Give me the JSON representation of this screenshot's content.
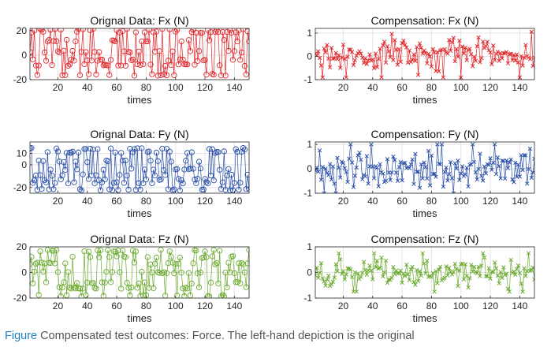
{
  "colors": {
    "red": "#e0262a",
    "blue": "#2a4fa8",
    "green": "#6aaa2e",
    "axis": "#262626",
    "grid": "#e4e4e4"
  },
  "chart_data": [
    {
      "id": "fx-orig",
      "type": "line",
      "marker": "circle",
      "color": "#e0262a",
      "title": "Orignal Data: Fx (N)",
      "xlabel": "times",
      "ylabel": "",
      "xlim": [
        1,
        150
      ],
      "ylim": [
        -20,
        22
      ],
      "xticks": [
        20,
        40,
        60,
        80,
        100,
        120,
        140
      ],
      "yticks": [
        -20,
        0,
        20
      ],
      "levels": [
        21,
        19,
        12,
        3,
        -4,
        -8,
        -16
      ],
      "seed": 11,
      "n": 150
    },
    {
      "id": "fx-comp",
      "type": "line",
      "marker": "x",
      "color": "#e0262a",
      "title": "Compensation: Fx (N)",
      "xlabel": "times",
      "ylabel": "",
      "xlim": [
        1,
        150
      ],
      "ylim": [
        -1,
        1.2
      ],
      "xticks": [
        20,
        40,
        60,
        80,
        100,
        120,
        140
      ],
      "yticks": [
        -1,
        0,
        1
      ],
      "levels": [],
      "range": [
        -0.9,
        1.05
      ],
      "seed": 23,
      "n": 150
    },
    {
      "id": "fy-orig",
      "type": "line",
      "marker": "circle",
      "color": "#2a4fa8",
      "title": "Orignal Data: Fy (N)",
      "xlabel": "times",
      "ylabel": "",
      "xlim": [
        1,
        150
      ],
      "ylim": [
        -25,
        20
      ],
      "xticks": [
        20,
        40,
        60,
        80,
        100,
        120,
        140
      ],
      "yticks": [
        -20,
        0,
        10
      ],
      "levels": [
        14,
        11,
        3,
        -4,
        -9,
        -13,
        -16,
        -22
      ],
      "seed": 37,
      "n": 150
    },
    {
      "id": "fy-comp",
      "type": "line",
      "marker": "x",
      "color": "#2a4fa8",
      "title": "Compensation: Fy (N)",
      "xlabel": "times",
      "ylabel": "",
      "xlim": [
        1,
        150
      ],
      "ylim": [
        -1,
        1.1
      ],
      "xticks": [
        20,
        40,
        60,
        80,
        100,
        120,
        140
      ],
      "yticks": [
        -1,
        0,
        1
      ],
      "levels": [],
      "range": [
        -1.0,
        1.0
      ],
      "seed": 41,
      "n": 150
    },
    {
      "id": "fz-orig",
      "type": "line",
      "marker": "circle",
      "color": "#6aaa2e",
      "title": "Orignal Data: Fz (N)",
      "xlabel": "times",
      "ylabel": "",
      "xlim": [
        1,
        150
      ],
      "ylim": [
        -20,
        20
      ],
      "xticks": [
        20,
        40,
        60,
        80,
        100,
        120,
        140
      ],
      "yticks": [
        -20,
        0,
        20
      ],
      "levels": [
        17,
        12,
        7,
        0,
        -8,
        -12,
        -18
      ],
      "seed": 53,
      "n": 150
    },
    {
      "id": "fz-comp",
      "type": "line",
      "marker": "x",
      "color": "#6aaa2e",
      "title": "Compensation: Fz (N)",
      "xlabel": "times",
      "ylabel": "",
      "xlim": [
        1,
        150
      ],
      "ylim": [
        -1,
        1
      ],
      "xticks": [
        20,
        40,
        60,
        80,
        100,
        120,
        140
      ],
      "yticks": [
        -1,
        0,
        1
      ],
      "levels": [],
      "range": [
        -0.75,
        0.75
      ],
      "seed": 67,
      "n": 150
    }
  ],
  "caption": {
    "label": "Figure",
    "text": "Compensated test outcomes: Force. The left-hand depiction is the original"
  }
}
